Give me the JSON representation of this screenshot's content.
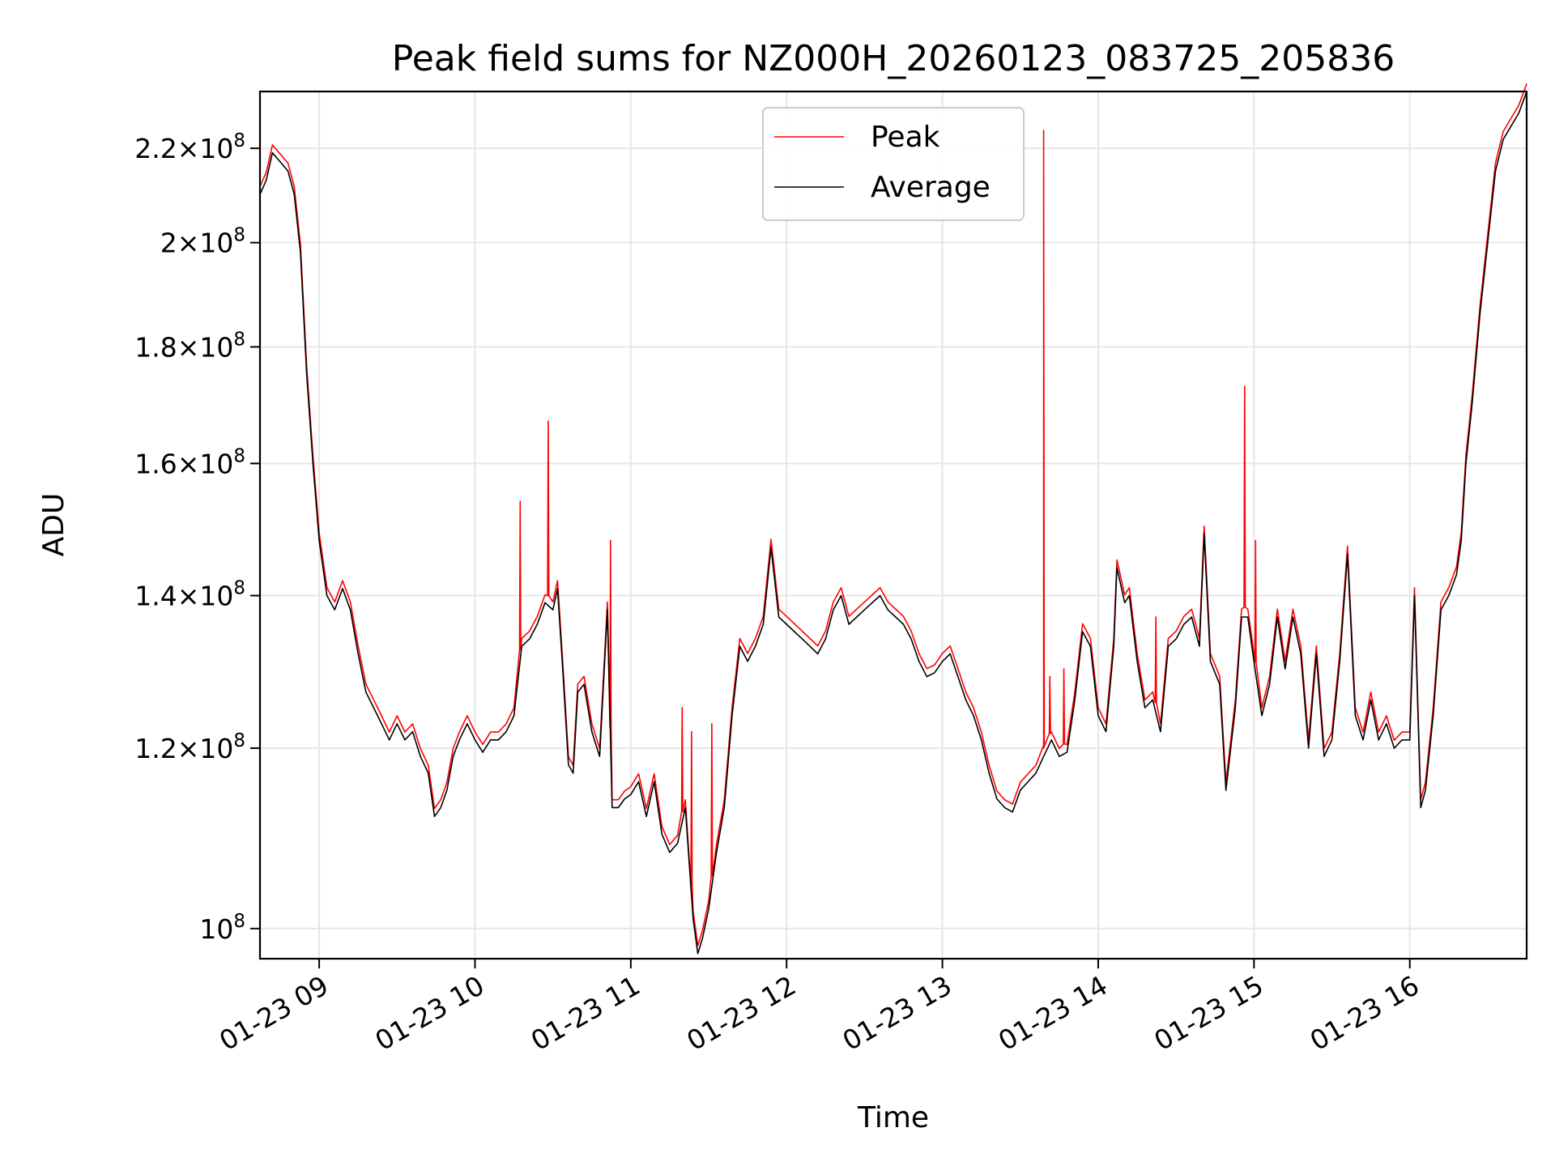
{
  "chart_data": {
    "type": "line",
    "title": "Peak field sums for NZ000H_20260123_083725_205836",
    "xlabel": "Time",
    "ylabel": "ADU",
    "yscale": "log",
    "ylim": [
      97000000,
      233000000
    ],
    "xlim": [
      8.62,
      16.75
    ],
    "grid": true,
    "legend_position": "top-center",
    "x_ticks": [
      9,
      10,
      11,
      12,
      13,
      14,
      15,
      16
    ],
    "x_tick_labels": [
      "01-23 09",
      "01-23 10",
      "01-23 11",
      "01-23 12",
      "01-23 13",
      "01-23 14",
      "01-23 15",
      "01-23 16"
    ],
    "y_ticks": [
      {
        "value": 100000000,
        "mantissa": "",
        "exp": "8"
      },
      {
        "value": 120000000,
        "mantissa": "1.2",
        "exp": "8"
      },
      {
        "value": 140000000,
        "mantissa": "1.4",
        "exp": "8"
      },
      {
        "value": 160000000,
        "mantissa": "1.6",
        "exp": "8"
      },
      {
        "value": 180000000,
        "mantissa": "1.8",
        "exp": "8"
      },
      {
        "value": 200000000,
        "mantissa": "2",
        "exp": "8"
      },
      {
        "value": 220000000,
        "mantissa": "2.2",
        "exp": "8"
      }
    ],
    "series": [
      {
        "name": "Peak",
        "color": "#ff0000",
        "spikes": [
          {
            "x": 10.29,
            "value": 154000000
          },
          {
            "x": 10.47,
            "value": 167000000
          },
          {
            "x": 10.87,
            "value": 148000000
          },
          {
            "x": 11.33,
            "value": 125000000
          },
          {
            "x": 11.39,
            "value": 122000000
          },
          {
            "x": 11.52,
            "value": 123000000
          },
          {
            "x": 13.65,
            "value": 224000000
          },
          {
            "x": 13.69,
            "value": 129000000
          },
          {
            "x": 13.78,
            "value": 130000000
          },
          {
            "x": 14.37,
            "value": 137000000
          },
          {
            "x": 14.94,
            "value": 173000000
          },
          {
            "x": 15.01,
            "value": 148000000
          }
        ]
      },
      {
        "name": "Average",
        "color": "#000000",
        "points": [
          [
            8.62,
            210000000
          ],
          [
            8.66,
            213000000
          ],
          [
            8.7,
            219000000
          ],
          [
            8.75,
            217000000
          ],
          [
            8.8,
            215000000
          ],
          [
            8.84,
            210000000
          ],
          [
            8.88,
            198000000
          ],
          [
            8.92,
            175000000
          ],
          [
            8.96,
            160000000
          ],
          [
            9.0,
            148000000
          ],
          [
            9.05,
            140000000
          ],
          [
            9.1,
            138000000
          ],
          [
            9.15,
            141000000
          ],
          [
            9.2,
            138000000
          ],
          [
            9.25,
            132000000
          ],
          [
            9.3,
            127000000
          ],
          [
            9.35,
            125000000
          ],
          [
            9.4,
            123000000
          ],
          [
            9.45,
            121000000
          ],
          [
            9.5,
            123000000
          ],
          [
            9.55,
            121000000
          ],
          [
            9.6,
            122000000
          ],
          [
            9.65,
            119000000
          ],
          [
            9.7,
            117000000
          ],
          [
            9.74,
            112000000
          ],
          [
            9.78,
            113000000
          ],
          [
            9.82,
            115000000
          ],
          [
            9.86,
            119000000
          ],
          [
            9.9,
            121000000
          ],
          [
            9.95,
            123000000
          ],
          [
            10.0,
            121000000
          ],
          [
            10.05,
            119500000
          ],
          [
            10.1,
            121000000
          ],
          [
            10.15,
            121000000
          ],
          [
            10.2,
            122000000
          ],
          [
            10.25,
            124000000
          ],
          [
            10.3,
            133000000
          ],
          [
            10.35,
            134000000
          ],
          [
            10.4,
            136000000
          ],
          [
            10.45,
            139000000
          ],
          [
            10.5,
            138000000
          ],
          [
            10.53,
            141000000
          ],
          [
            10.56,
            131000000
          ],
          [
            10.6,
            118000000
          ],
          [
            10.63,
            117000000
          ],
          [
            10.66,
            127000000
          ],
          [
            10.7,
            128000000
          ],
          [
            10.75,
            122000000
          ],
          [
            10.8,
            119000000
          ],
          [
            10.85,
            138000000
          ],
          [
            10.88,
            113000000
          ],
          [
            10.92,
            113000000
          ],
          [
            10.96,
            114000000
          ],
          [
            11.0,
            114500000
          ],
          [
            11.05,
            116000000
          ],
          [
            11.1,
            112000000
          ],
          [
            11.15,
            116000000
          ],
          [
            11.2,
            110000000
          ],
          [
            11.25,
            108000000
          ],
          [
            11.3,
            109000000
          ],
          [
            11.35,
            113000000
          ],
          [
            11.4,
            101000000
          ],
          [
            11.43,
            97500000
          ],
          [
            11.46,
            99000000
          ],
          [
            11.5,
            102000000
          ],
          [
            11.55,
            108000000
          ],
          [
            11.6,
            113000000
          ],
          [
            11.65,
            124000000
          ],
          [
            11.7,
            133000000
          ],
          [
            11.75,
            131000000
          ],
          [
            11.8,
            133000000
          ],
          [
            11.85,
            136000000
          ],
          [
            11.9,
            147000000
          ],
          [
            11.95,
            137000000
          ],
          [
            12.0,
            136000000
          ],
          [
            12.05,
            135000000
          ],
          [
            12.1,
            134000000
          ],
          [
            12.15,
            133000000
          ],
          [
            12.2,
            132000000
          ],
          [
            12.25,
            134000000
          ],
          [
            12.3,
            138000000
          ],
          [
            12.35,
            140000000
          ],
          [
            12.4,
            136000000
          ],
          [
            12.45,
            137000000
          ],
          [
            12.5,
            138000000
          ],
          [
            12.55,
            139000000
          ],
          [
            12.6,
            140000000
          ],
          [
            12.65,
            138000000
          ],
          [
            12.7,
            137000000
          ],
          [
            12.75,
            136000000
          ],
          [
            12.8,
            134000000
          ],
          [
            12.85,
            131000000
          ],
          [
            12.9,
            129000000
          ],
          [
            12.95,
            129500000
          ],
          [
            13.0,
            131000000
          ],
          [
            13.05,
            132000000
          ],
          [
            13.1,
            129000000
          ],
          [
            13.15,
            126000000
          ],
          [
            13.2,
            124000000
          ],
          [
            13.25,
            121000000
          ],
          [
            13.3,
            117000000
          ],
          [
            13.35,
            114000000
          ],
          [
            13.4,
            113000000
          ],
          [
            13.45,
            112500000
          ],
          [
            13.5,
            115000000
          ],
          [
            13.55,
            116000000
          ],
          [
            13.6,
            117000000
          ],
          [
            13.65,
            119000000
          ],
          [
            13.7,
            121000000
          ],
          [
            13.75,
            119000000
          ],
          [
            13.8,
            119500000
          ],
          [
            13.85,
            126000000
          ],
          [
            13.9,
            135000000
          ],
          [
            13.95,
            133000000
          ],
          [
            14.0,
            124000000
          ],
          [
            14.05,
            122000000
          ],
          [
            14.1,
            133000000
          ],
          [
            14.12,
            144000000
          ],
          [
            14.17,
            139000000
          ],
          [
            14.2,
            140000000
          ],
          [
            14.25,
            131000000
          ],
          [
            14.3,
            125000000
          ],
          [
            14.35,
            126000000
          ],
          [
            14.4,
            122000000
          ],
          [
            14.45,
            133000000
          ],
          [
            14.5,
            134000000
          ],
          [
            14.55,
            136000000
          ],
          [
            14.6,
            137000000
          ],
          [
            14.65,
            133000000
          ],
          [
            14.68,
            149000000
          ],
          [
            14.72,
            131000000
          ],
          [
            14.78,
            128000000
          ],
          [
            14.82,
            115000000
          ],
          [
            14.88,
            125000000
          ],
          [
            14.92,
            137000000
          ],
          [
            14.96,
            137000000
          ],
          [
            15.0,
            131000000
          ],
          [
            15.05,
            124000000
          ],
          [
            15.1,
            128000000
          ],
          [
            15.15,
            137000000
          ],
          [
            15.2,
            130000000
          ],
          [
            15.25,
            137000000
          ],
          [
            15.3,
            132000000
          ],
          [
            15.35,
            120000000
          ],
          [
            15.4,
            132000000
          ],
          [
            15.45,
            119000000
          ],
          [
            15.5,
            121000000
          ],
          [
            15.55,
            131000000
          ],
          [
            15.6,
            146000000
          ],
          [
            15.65,
            124000000
          ],
          [
            15.7,
            121000000
          ],
          [
            15.75,
            126000000
          ],
          [
            15.8,
            121000000
          ],
          [
            15.85,
            123000000
          ],
          [
            15.9,
            120000000
          ],
          [
            15.95,
            121000000
          ],
          [
            16.0,
            121000000
          ],
          [
            16.03,
            140000000
          ],
          [
            16.07,
            113000000
          ],
          [
            16.1,
            115000000
          ],
          [
            16.15,
            124000000
          ],
          [
            16.2,
            138000000
          ],
          [
            16.25,
            140000000
          ],
          [
            16.3,
            143000000
          ],
          [
            16.33,
            148000000
          ],
          [
            16.36,
            160000000
          ],
          [
            16.4,
            170000000
          ],
          [
            16.45,
            186000000
          ],
          [
            16.5,
            200000000
          ],
          [
            16.55,
            215000000
          ],
          [
            16.6,
            222000000
          ],
          [
            16.65,
            225000000
          ],
          [
            16.7,
            228000000
          ],
          [
            16.75,
            233000000
          ]
        ]
      }
    ]
  }
}
